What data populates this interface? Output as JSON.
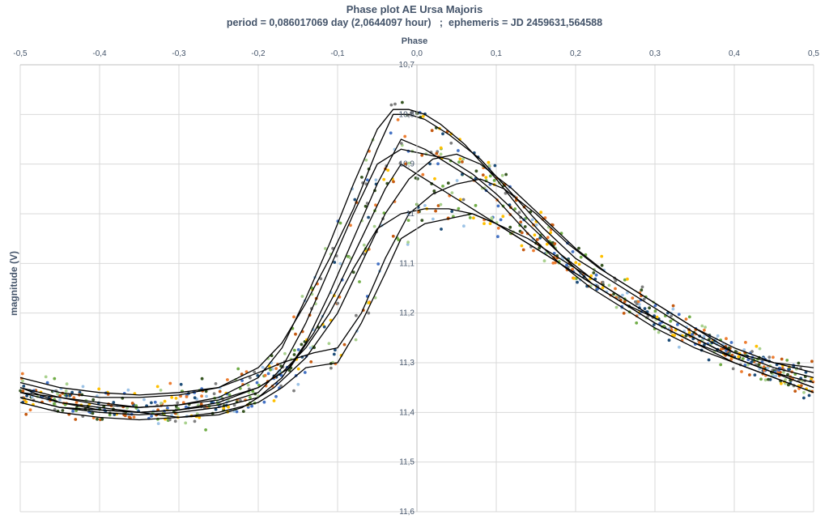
{
  "chart_data": {
    "type": "scatter",
    "title": "Phase plot AE Ursa Majoris",
    "subtitle": "period = 0,086017069 day (2,0644097 hour)   ;  ephemeris = JD 2459631,564588",
    "xlabel": "Phase",
    "ylabel": "magnitude (V)",
    "xlim": [
      -0.5,
      0.5
    ],
    "ylim": [
      10.7,
      11.6
    ],
    "y_inverted": true,
    "x_axis_position": "top",
    "grid": true,
    "x_ticks": [
      "-0,5",
      "-0,4",
      "-0,3",
      "-0,2",
      "-0,1",
      "0,0",
      "0,1",
      "0,2",
      "0,3",
      "0,4",
      "0,5"
    ],
    "x_tick_values": [
      -0.5,
      -0.4,
      -0.3,
      -0.2,
      -0.1,
      0.0,
      0.1,
      0.2,
      0.3,
      0.4,
      0.5
    ],
    "y_ticks": [
      "10,7",
      "10,8",
      "10,9",
      "11",
      "11,1",
      "11,2",
      "11,3",
      "11,4",
      "11,5",
      "11,6"
    ],
    "y_tick_values": [
      10.7,
      10.8,
      10.9,
      11.0,
      11.1,
      11.2,
      11.3,
      11.4,
      11.5,
      11.6
    ],
    "series_colors": [
      "#1f4e79",
      "#4472c4",
      "#9dc3e6",
      "#ed7d31",
      "#c55a11",
      "#ffc000",
      "#70ad47",
      "#375623",
      "#a9d18e",
      "#7f7f7f"
    ],
    "line_color": "#000000",
    "curves": [
      {
        "x": [
          -0.5,
          -0.45,
          -0.4,
          -0.35,
          -0.3,
          -0.25,
          -0.2,
          -0.17,
          -0.14,
          -0.11,
          -0.08,
          -0.05,
          -0.03,
          -0.01,
          0.01,
          0.03,
          0.06,
          0.1,
          0.14,
          0.18,
          0.22,
          0.26,
          0.3,
          0.35,
          0.4,
          0.45,
          0.5
        ],
        "y": [
          11.36,
          11.37,
          11.385,
          11.39,
          11.385,
          11.37,
          11.33,
          11.27,
          11.17,
          11.06,
          10.94,
          10.83,
          10.79,
          10.79,
          10.8,
          10.82,
          10.86,
          10.93,
          11.01,
          11.08,
          11.14,
          11.18,
          11.22,
          11.26,
          11.29,
          11.32,
          11.34
        ]
      },
      {
        "x": [
          -0.5,
          -0.45,
          -0.4,
          -0.35,
          -0.3,
          -0.25,
          -0.2,
          -0.17,
          -0.14,
          -0.11,
          -0.08,
          -0.05,
          -0.03,
          -0.01,
          0.01,
          0.04,
          0.08,
          0.12,
          0.16,
          0.2,
          0.24,
          0.28,
          0.32,
          0.36,
          0.4,
          0.45,
          0.5
        ],
        "y": [
          11.34,
          11.36,
          11.37,
          11.37,
          11.365,
          11.35,
          11.31,
          11.26,
          11.18,
          11.09,
          10.99,
          10.87,
          10.8,
          10.8,
          10.81,
          10.84,
          10.89,
          10.96,
          11.03,
          11.09,
          11.13,
          11.17,
          11.21,
          11.25,
          11.28,
          11.3,
          11.31
        ]
      },
      {
        "x": [
          -0.5,
          -0.45,
          -0.4,
          -0.35,
          -0.3,
          -0.25,
          -0.2,
          -0.17,
          -0.14,
          -0.11,
          -0.08,
          -0.05,
          -0.02,
          0.01,
          0.04,
          0.07,
          0.1,
          0.14,
          0.18,
          0.22,
          0.26,
          0.3,
          0.35,
          0.4,
          0.45,
          0.5
        ],
        "y": [
          11.37,
          11.39,
          11.4,
          11.405,
          11.4,
          11.39,
          11.37,
          11.33,
          11.26,
          11.16,
          11.05,
          10.94,
          10.85,
          10.87,
          10.9,
          10.93,
          10.97,
          11.04,
          11.1,
          11.15,
          11.19,
          11.23,
          11.27,
          11.3,
          11.33,
          11.36
        ]
      },
      {
        "x": [
          -0.5,
          -0.45,
          -0.4,
          -0.35,
          -0.3,
          -0.25,
          -0.2,
          -0.17,
          -0.14,
          -0.11,
          -0.08,
          -0.05,
          -0.02,
          0.01,
          0.04,
          0.07,
          0.1,
          0.14,
          0.18,
          0.22,
          0.26,
          0.3,
          0.35,
          0.4,
          0.45,
          0.5
        ],
        "y": [
          11.35,
          11.38,
          11.395,
          11.4,
          11.395,
          11.385,
          11.36,
          11.31,
          11.22,
          11.11,
          11.0,
          10.9,
          10.87,
          10.88,
          10.89,
          10.92,
          10.96,
          11.02,
          11.08,
          11.13,
          11.17,
          11.21,
          11.25,
          11.29,
          11.32,
          11.35
        ]
      },
      {
        "x": [
          -0.5,
          -0.45,
          -0.4,
          -0.35,
          -0.3,
          -0.25,
          -0.22,
          -0.18,
          -0.14,
          -0.1,
          -0.07,
          -0.04,
          -0.01,
          0.02,
          0.05,
          0.08,
          0.12,
          0.16,
          0.2,
          0.24,
          0.28,
          0.32,
          0.36,
          0.4,
          0.45,
          0.5
        ],
        "y": [
          11.36,
          11.38,
          11.39,
          11.4,
          11.41,
          11.405,
          11.39,
          11.35,
          11.29,
          11.2,
          11.1,
          11.0,
          10.93,
          10.89,
          10.88,
          10.9,
          10.95,
          11.01,
          11.07,
          11.12,
          11.16,
          11.2,
          11.24,
          11.28,
          11.31,
          11.33
        ]
      },
      {
        "x": [
          -0.5,
          -0.45,
          -0.4,
          -0.35,
          -0.3,
          -0.25,
          -0.2,
          -0.16,
          -0.13,
          -0.1,
          -0.07,
          -0.04,
          -0.02,
          0.01,
          0.04,
          0.07,
          0.1,
          0.14,
          0.18,
          0.22,
          0.26,
          0.3,
          0.35,
          0.4,
          0.45,
          0.5
        ],
        "y": [
          11.35,
          11.37,
          11.38,
          11.39,
          11.385,
          11.375,
          11.35,
          11.31,
          11.24,
          11.15,
          11.05,
          10.95,
          10.9,
          10.93,
          10.96,
          10.99,
          11.02,
          11.06,
          11.1,
          11.14,
          11.18,
          11.21,
          11.25,
          11.29,
          11.32,
          11.35
        ]
      },
      {
        "x": [
          -0.5,
          -0.45,
          -0.4,
          -0.35,
          -0.3,
          -0.25,
          -0.2,
          -0.17,
          -0.13,
          -0.1,
          -0.07,
          -0.04,
          -0.01,
          0.02,
          0.05,
          0.08,
          0.11,
          0.15,
          0.19,
          0.23,
          0.27,
          0.31,
          0.35,
          0.4,
          0.45,
          0.5
        ],
        "y": [
          11.33,
          11.35,
          11.36,
          11.365,
          11.36,
          11.35,
          11.32,
          11.3,
          11.28,
          11.27,
          11.2,
          11.09,
          11.0,
          10.96,
          10.94,
          10.93,
          10.95,
          11.0,
          11.06,
          11.11,
          11.15,
          11.19,
          11.23,
          11.27,
          11.3,
          11.32
        ]
      },
      {
        "x": [
          -0.5,
          -0.45,
          -0.4,
          -0.35,
          -0.3,
          -0.25,
          -0.2,
          -0.17,
          -0.14,
          -0.1,
          -0.07,
          -0.04,
          -0.02,
          0.01,
          0.04,
          0.07,
          0.1,
          0.14,
          0.18,
          0.22,
          0.26,
          0.3,
          0.35,
          0.4,
          0.45,
          0.5
        ],
        "y": [
          11.38,
          11.4,
          11.41,
          11.415,
          11.41,
          11.4,
          11.38,
          11.35,
          11.31,
          11.3,
          11.22,
          11.12,
          11.05,
          11.02,
          11.01,
          11.0,
          11.02,
          11.06,
          11.1,
          11.14,
          11.18,
          11.22,
          11.26,
          11.3,
          11.33,
          11.36
        ]
      },
      {
        "x": [
          -0.5,
          -0.45,
          -0.4,
          -0.35,
          -0.3,
          -0.25,
          -0.2,
          -0.17,
          -0.14,
          -0.11,
          -0.08,
          -0.05,
          -0.02,
          0.01,
          0.04,
          0.07,
          0.1,
          0.14,
          0.18,
          0.22,
          0.26,
          0.3,
          0.35,
          0.4,
          0.45,
          0.5
        ],
        "y": [
          11.37,
          11.39,
          11.395,
          11.4,
          11.395,
          11.38,
          11.35,
          11.32,
          11.27,
          11.2,
          11.11,
          11.03,
          11.0,
          10.99,
          10.99,
          11.0,
          11.02,
          11.05,
          11.09,
          11.13,
          11.17,
          11.21,
          11.25,
          11.29,
          11.32,
          11.35
        ]
      }
    ]
  }
}
